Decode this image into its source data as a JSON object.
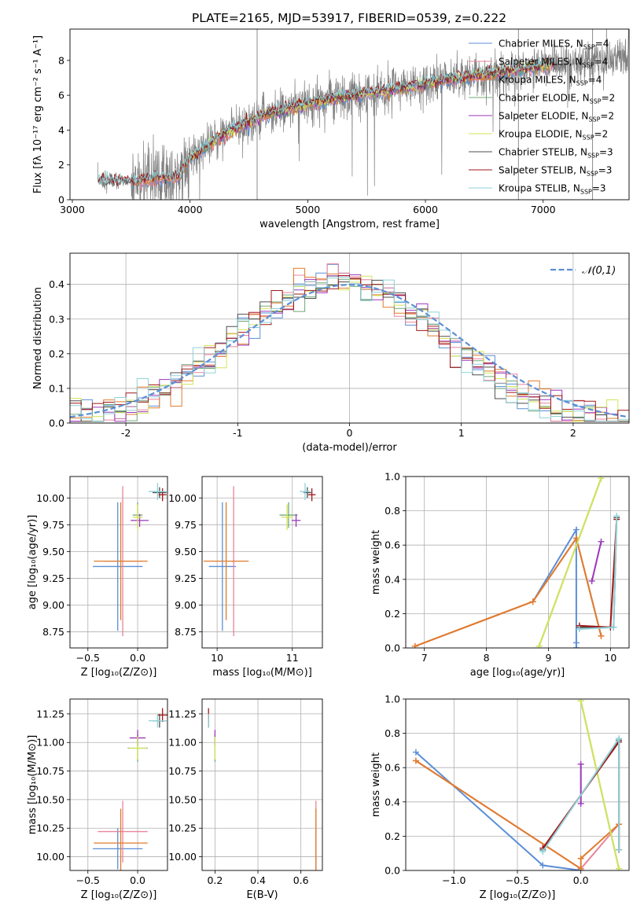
{
  "title": "PLATE=2165, MJD=53917, FIBERID=0539, z=0.222",
  "colors": {
    "chab_miles": "#5b8fd6",
    "salp_miles": "#e8849a",
    "krou_miles": "#e07b2c",
    "chab_elodie": "#70a878",
    "salp_elodie": "#9b37b8",
    "krou_elodie": "#d5e35a",
    "chab_stelib": "#4e4e4e",
    "salp_stelib": "#a01818",
    "krou_stelib": "#8fd2d8",
    "data": "#7f7f7f",
    "gauss": "#5b8fd6",
    "grid": "#b0b0b0"
  },
  "legend_spectrum": [
    {
      "key": "chab_miles",
      "text": "Chabrier MILES, N",
      "sub": "SSP",
      "tail": "=4"
    },
    {
      "key": "salp_miles",
      "text": "Salpeter MILES, N",
      "sub": "SSP",
      "tail": "=4"
    },
    {
      "key": "krou_miles",
      "text": "Kroupa MILES, N",
      "sub": "SSP",
      "tail": "=4"
    },
    {
      "key": "chab_elodie",
      "text": "Chabrier ELODIE, N",
      "sub": "SSP",
      "tail": "=2"
    },
    {
      "key": "salp_elodie",
      "text": "Salpeter ELODIE, N",
      "sub": "SSP",
      "tail": "=2"
    },
    {
      "key": "krou_elodie",
      "text": "Kroupa ELODIE, N",
      "sub": "SSP",
      "tail": "=2"
    },
    {
      "key": "chab_stelib",
      "text": "Chabrier STELIB, N",
      "sub": "SSP",
      "tail": "=3"
    },
    {
      "key": "salp_stelib",
      "text": "Salpeter STELIB, N",
      "sub": "SSP",
      "tail": "=3"
    },
    {
      "key": "krou_stelib",
      "text": "Kroupa STELIB, N",
      "sub": "SSP",
      "tail": "=3"
    }
  ],
  "chart_data": [
    {
      "id": "spectrum",
      "type": "line",
      "xlabel": "wavelength [Angstrom, rest frame]",
      "ylabel": "Flux [fλ 10⁻¹⁷ erg cm⁻² s⁻¹ A⁻¹]",
      "xlim": [
        2980,
        7730
      ],
      "ylim": [
        0,
        9.8
      ],
      "xticks": [
        3000,
        4000,
        5000,
        6000,
        7000
      ],
      "yticks": [
        0,
        2,
        4,
        6,
        8
      ],
      "model_anchors": {
        "x": [
          3210,
          3500,
          3700,
          3900,
          4000,
          4300,
          4600,
          5000,
          5400,
          5800,
          6200,
          6600,
          7000,
          7400,
          7700
        ],
        "y": [
          1.1,
          1.0,
          1.2,
          1.3,
          2.4,
          3.8,
          4.8,
          5.5,
          6.0,
          6.4,
          6.9,
          7.3,
          7.7,
          8.0,
          8.2
        ]
      }
    },
    {
      "id": "residuals",
      "type": "line",
      "xlabel": "(data-model)/error",
      "ylabel": "Normed distribution",
      "xlim": [
        -2.5,
        2.5
      ],
      "ylim": [
        0,
        0.49
      ],
      "xticks": [
        -2,
        -1,
        0,
        1,
        2
      ],
      "yticks": [
        0.0,
        0.1,
        0.2,
        0.3,
        0.4
      ],
      "legend": "𝒩(0,1)"
    },
    {
      "id": "age_vs_Z",
      "type": "scatter",
      "xlabel": "Z [log₁₀(Z/Z⊙)]",
      "ylabel": "age  [log₁₀(age/yr)]",
      "xlim": [
        -0.68,
        0.3
      ],
      "ylim": [
        8.6,
        10.2
      ],
      "xticks": [
        -0.5,
        0.0
      ],
      "xticklabels": [
        "−0.5",
        "0.0"
      ],
      "yticks": [
        8.75,
        9.0,
        9.25,
        9.5,
        9.75,
        10.0
      ],
      "points": [
        {
          "key": "chab_miles",
          "x": -0.2,
          "y": 9.36,
          "ex": 0.25,
          "ey": 0.6
        },
        {
          "key": "salp_miles",
          "x": -0.15,
          "y": 9.41,
          "ex": 0.2,
          "ey": 0.7
        },
        {
          "key": "krou_miles",
          "x": -0.17,
          "y": 9.41,
          "ex": 0.27,
          "ey": 0.55
        },
        {
          "key": "chab_elodie",
          "x": 0.0,
          "y": 9.84,
          "ex": 0.05,
          "ey": 0.12
        },
        {
          "key": "salp_elodie",
          "x": 0.02,
          "y": 9.79,
          "ex": 0.09,
          "ey": 0.06
        },
        {
          "key": "krou_elodie",
          "x": 0.0,
          "y": 9.82,
          "ex": 0.05,
          "ey": 0.12
        },
        {
          "key": "chab_stelib",
          "x": 0.22,
          "y": 10.05,
          "ex": 0.07,
          "ey": 0.05
        },
        {
          "key": "salp_stelib",
          "x": 0.25,
          "y": 10.03,
          "ex": 0.04,
          "ey": 0.06
        },
        {
          "key": "krou_stelib",
          "x": 0.2,
          "y": 10.06,
          "ex": 0.09,
          "ey": 0.08
        }
      ]
    },
    {
      "id": "age_vs_mass",
      "type": "scatter",
      "xlabel": "mass [log₁₀(M/M⊙)]",
      "ylabel": "",
      "xlim": [
        9.8,
        11.4
      ],
      "ylim": [
        8.6,
        10.2
      ],
      "xticks": [
        10,
        11
      ],
      "xticklabels": [
        "10",
        "11"
      ],
      "yticks": [
        8.75,
        9.0,
        9.25,
        9.5,
        9.75,
        10.0
      ],
      "points": [
        {
          "key": "chab_miles",
          "x": 10.07,
          "y": 9.36,
          "ex": 0.18,
          "ey": 0.6
        },
        {
          "key": "salp_miles",
          "x": 10.22,
          "y": 9.41,
          "ex": 0.03,
          "ey": 0.7
        },
        {
          "key": "krou_miles",
          "x": 10.12,
          "y": 9.41,
          "ex": 0.3,
          "ey": 0.55
        },
        {
          "key": "chab_elodie",
          "x": 10.95,
          "y": 9.84,
          "ex": 0.12,
          "ey": 0.12
        },
        {
          "key": "salp_elodie",
          "x": 11.05,
          "y": 9.79,
          "ex": 0.06,
          "ey": 0.06
        },
        {
          "key": "krou_elodie",
          "x": 10.93,
          "y": 9.82,
          "ex": 0.08,
          "ey": 0.12
        },
        {
          "key": "chab_stelib",
          "x": 11.2,
          "y": 10.05,
          "ex": 0.05,
          "ey": 0.05
        },
        {
          "key": "salp_stelib",
          "x": 11.26,
          "y": 10.03,
          "ex": 0.05,
          "ey": 0.06
        },
        {
          "key": "krou_stelib",
          "x": 11.17,
          "y": 10.06,
          "ex": 0.07,
          "ey": 0.08
        }
      ]
    },
    {
      "id": "weight_vs_age",
      "type": "line",
      "xlabel": "age  [log₁₀(age/yr)]",
      "ylabel": "mass weight",
      "xlim": [
        6.7,
        10.3
      ],
      "ylim": [
        0,
        1
      ],
      "xticks": [
        7,
        8,
        9,
        10
      ],
      "yticks": [
        0,
        0.2,
        0.4,
        0.6,
        0.8,
        1.0
      ],
      "series": [
        {
          "key": "chab_miles",
          "x": [
            8.75,
            9.45,
            9.45,
            9.45
          ],
          "y": [
            0.27,
            0.69,
            0.03,
            0.0
          ]
        },
        {
          "key": "salp_miles",
          "x": [
            6.85,
            8.75,
            9.45,
            9.85
          ],
          "y": [
            0.01,
            0.27,
            0.64,
            0.07
          ]
        },
        {
          "key": "krou_miles",
          "x": [
            6.85,
            8.75,
            9.45,
            9.85
          ],
          "y": [
            0.01,
            0.27,
            0.64,
            0.07
          ]
        },
        {
          "key": "chab_elodie",
          "x": [
            8.85,
            9.85
          ],
          "y": [
            0.01,
            0.99
          ]
        },
        {
          "key": "salp_elodie",
          "x": [
            9.7,
            9.85
          ],
          "y": [
            0.39,
            0.62
          ]
        },
        {
          "key": "krou_elodie",
          "x": [
            8.85,
            9.85
          ],
          "y": [
            0.01,
            0.99
          ]
        },
        {
          "key": "chab_stelib",
          "x": [
            9.5,
            10.05,
            10.1
          ],
          "y": [
            0.12,
            0.12,
            0.76
          ]
        },
        {
          "key": "salp_stelib",
          "x": [
            9.5,
            10.0,
            10.1
          ],
          "y": [
            0.13,
            0.12,
            0.75
          ]
        },
        {
          "key": "krou_stelib",
          "x": [
            9.5,
            10.05,
            10.1
          ],
          "y": [
            0.11,
            0.12,
            0.77
          ]
        }
      ]
    },
    {
      "id": "mass_vs_Z",
      "type": "scatter",
      "xlabel": "Z [log₁₀(Z/Z⊙)]",
      "ylabel": "mass [log₁₀(M/M⊙)]",
      "xlim": [
        -0.68,
        0.3
      ],
      "ylim": [
        9.88,
        11.38
      ],
      "xticks": [
        -0.5,
        0.0
      ],
      "xticklabels": [
        "−0.5",
        "0.0"
      ],
      "yticks": [
        10.0,
        10.25,
        10.5,
        10.75,
        11.0,
        11.25
      ],
      "points": [
        {
          "key": "chab_miles",
          "x": -0.2,
          "y": 10.07,
          "ex": 0.25,
          "ey": 0.18
        },
        {
          "key": "salp_miles",
          "x": -0.15,
          "y": 10.22,
          "ex": 0.25,
          "ey": 0.27
        },
        {
          "key": "krou_miles",
          "x": -0.17,
          "y": 10.12,
          "ex": 0.27,
          "ey": 0.3
        },
        {
          "key": "chab_elodie",
          "x": 0.0,
          "y": 10.95,
          "ex": 0.1,
          "ey": 0.12
        },
        {
          "key": "salp_elodie",
          "x": 0.0,
          "y": 11.04,
          "ex": 0.08,
          "ey": 0.07
        },
        {
          "key": "krou_elodie",
          "x": 0.0,
          "y": 10.95,
          "ex": 0.09,
          "ey": 0.1
        },
        {
          "key": "chab_stelib",
          "x": 0.22,
          "y": 11.19,
          "ex": 0.07,
          "ey": 0.06
        },
        {
          "key": "salp_stelib",
          "x": 0.25,
          "y": 11.24,
          "ex": 0.05,
          "ey": 0.06
        },
        {
          "key": "krou_stelib",
          "x": 0.2,
          "y": 11.19,
          "ex": 0.09,
          "ey": 0.06
        }
      ]
    },
    {
      "id": "mass_vs_EBV",
      "type": "scatter",
      "xlabel": "E(B-V)",
      "ylabel": "",
      "xlim": [
        0.14,
        0.7
      ],
      "ylim": [
        9.88,
        11.38
      ],
      "xticks": [
        0.2,
        0.4,
        0.6
      ],
      "xticklabels": [
        "0.2",
        "0.4",
        "0.6"
      ],
      "yticks": [
        10.0,
        10.25,
        10.5,
        10.75,
        11.0,
        11.25
      ],
      "points": [
        {
          "key": "chab_miles",
          "x": 0.67,
          "y": 10.07,
          "ex": 0.0,
          "ey": 0.18
        },
        {
          "key": "salp_miles",
          "x": 0.67,
          "y": 10.22,
          "ex": 0.0,
          "ey": 0.27
        },
        {
          "key": "krou_miles",
          "x": 0.67,
          "y": 10.12,
          "ex": 0.0,
          "ey": 0.3
        },
        {
          "key": "chab_elodie",
          "x": 0.2,
          "y": 10.95,
          "ex": 0.0,
          "ey": 0.12
        },
        {
          "key": "salp_elodie",
          "x": 0.2,
          "y": 11.04,
          "ex": 0.0,
          "ey": 0.07
        },
        {
          "key": "krou_elodie",
          "x": 0.2,
          "y": 10.95,
          "ex": 0.0,
          "ey": 0.1
        },
        {
          "key": "chab_stelib",
          "x": 0.17,
          "y": 11.19,
          "ex": 0.0,
          "ey": 0.06
        },
        {
          "key": "salp_stelib",
          "x": 0.17,
          "y": 11.24,
          "ex": 0.0,
          "ey": 0.06
        },
        {
          "key": "krou_stelib",
          "x": 0.17,
          "y": 11.19,
          "ex": 0.0,
          "ey": 0.06
        }
      ]
    },
    {
      "id": "weight_vs_Z",
      "type": "line",
      "xlabel": "Z [log₁₀(Z/Z⊙)]",
      "ylabel": "mass weight",
      "xlim": [
        -1.38,
        0.38
      ],
      "ylim": [
        0,
        1
      ],
      "xticks": [
        -1.0,
        -0.5,
        0.0
      ],
      "xticklabels": [
        "−1.0",
        "−0.5",
        "0.0"
      ],
      "yticks": [
        0,
        0.2,
        0.4,
        0.6,
        0.8,
        1.0
      ],
      "series": [
        {
          "key": "chab_miles",
          "x": [
            -1.3,
            -0.3,
            0.0
          ],
          "y": [
            0.69,
            0.03,
            0.0
          ]
        },
        {
          "key": "salp_miles",
          "x": [
            -1.3,
            0.0,
            0.3
          ],
          "y": [
            0.64,
            0.01,
            0.27
          ]
        },
        {
          "key": "krou_miles",
          "x": [
            -1.3,
            0.0,
            0.0,
            0.3
          ],
          "y": [
            0.64,
            0.01,
            0.07,
            0.27
          ]
        },
        {
          "key": "chab_elodie",
          "x": [
            0.0,
            0.3
          ],
          "y": [
            0.99,
            0.01
          ]
        },
        {
          "key": "salp_elodie",
          "x": [
            0.0,
            0.0
          ],
          "y": [
            0.39,
            0.62
          ]
        },
        {
          "key": "krou_elodie",
          "x": [
            0.0,
            0.3
          ],
          "y": [
            0.99,
            0.01
          ]
        },
        {
          "key": "chab_stelib",
          "x": [
            -0.3,
            0.3,
            0.3
          ],
          "y": [
            0.12,
            0.76,
            0.12
          ]
        },
        {
          "key": "salp_stelib",
          "x": [
            -0.3,
            0.3,
            0.3
          ],
          "y": [
            0.13,
            0.75,
            0.12
          ]
        },
        {
          "key": "krou_stelib",
          "x": [
            -0.3,
            0.3,
            0.3
          ],
          "y": [
            0.11,
            0.77,
            0.12
          ]
        }
      ]
    }
  ]
}
